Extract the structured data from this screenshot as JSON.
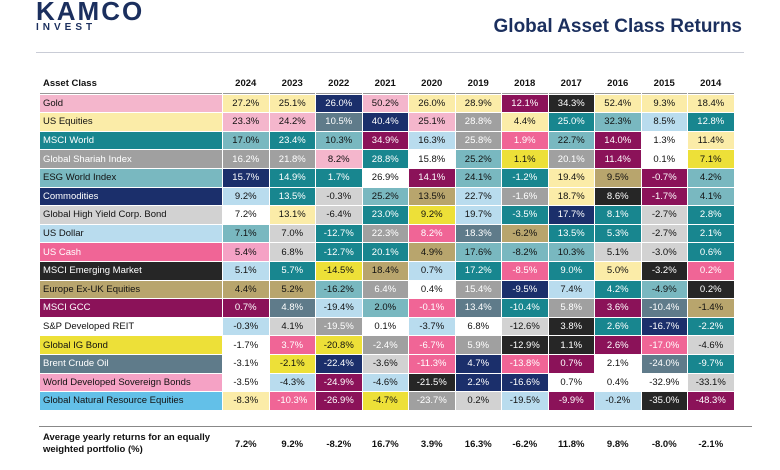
{
  "brand": {
    "name": "KAMCO",
    "sub": "INVEST"
  },
  "title": "Global Asset Class Returns",
  "footer_label": "Average yearly returns for an equally weighted portfolio (%)",
  "chart_data": {
    "type": "table",
    "title": "Global Asset Class Returns",
    "header_label": "Asset Class",
    "years": [
      "2024",
      "2023",
      "2022",
      "2021",
      "2020",
      "2019",
      "2018",
      "2017",
      "2016",
      "2015",
      "2014"
    ],
    "assets": [
      {
        "name": "Gold",
        "color": "#f4b6cc",
        "text": "#111111"
      },
      {
        "name": "US Equities",
        "color": "#fbeca8",
        "text": "#111111"
      },
      {
        "name": "MSCI World",
        "color": "#18868f",
        "text": "#ffffff"
      },
      {
        "name": "Global Shariah Index",
        "color": "#a0a0a0",
        "text": "#ffffff"
      },
      {
        "name": "ESG World Index",
        "color": "#79b8c0",
        "text": "#111111"
      },
      {
        "name": "Commodities",
        "color": "#1b2f6b",
        "text": "#ffffff"
      },
      {
        "name": "Global High Yield Corp. Bond",
        "color": "#d2d2d2",
        "text": "#111111"
      },
      {
        "name": "US Dollar",
        "color": "#b9dcee",
        "text": "#111111"
      },
      {
        "name": "US Cash",
        "color": "#f06596",
        "text": "#ffffff"
      },
      {
        "name": "MSCI Emerging Market",
        "color": "#262626",
        "text": "#ffffff"
      },
      {
        "name": "Europe Ex-UK Equities",
        "color": "#b8a56d",
        "text": "#111111"
      },
      {
        "name": "MSCI GCC",
        "color": "#8b1259",
        "text": "#ffffff"
      },
      {
        "name": "S&P Developed REIT",
        "color": "#ffffff",
        "text": "#111111"
      },
      {
        "name": "Global IG Bond",
        "color": "#ede038",
        "text": "#111111"
      },
      {
        "name": "Brent Crude Oil",
        "color": "#5f7b8a",
        "text": "#ffffff"
      },
      {
        "name": "World Developed Sovereign Bonds",
        "color": "#f5a2c5",
        "text": "#111111"
      },
      {
        "name": "Global Natural Resource Equities",
        "color": "#63c0e8",
        "text": "#111111"
      }
    ],
    "rows": [
      [
        "27.2%",
        "25.1%",
        "26.0%",
        "50.2%",
        "26.0%",
        "28.9%",
        "12.1%",
        "34.3%",
        "52.4%",
        "9.3%",
        "18.4%"
      ],
      [
        "23.3%",
        "24.2%",
        "10.5%",
        "40.4%",
        "25.1%",
        "28.8%",
        "4.4%",
        "25.0%",
        "32.3%",
        "8.5%",
        "12.8%"
      ],
      [
        "17.0%",
        "23.4%",
        "10.3%",
        "34.9%",
        "16.3%",
        "25.8%",
        "1.9%",
        "22.7%",
        "14.0%",
        "1.3%",
        "11.4%"
      ],
      [
        "16.2%",
        "21.8%",
        "8.2%",
        "28.8%",
        "15.8%",
        "25.2%",
        "1.1%",
        "20.1%",
        "11.4%",
        "0.1%",
        "7.1%"
      ],
      [
        "15.7%",
        "14.9%",
        "1.7%",
        "26.9%",
        "14.1%",
        "24.1%",
        "-1.2%",
        "19.4%",
        "9.5%",
        "-0.7%",
        "4.2%"
      ],
      [
        "9.2%",
        "13.5%",
        "-0.3%",
        "25.2%",
        "13.5%",
        "22.7%",
        "-1.6%",
        "18.7%",
        "8.6%",
        "-1.7%",
        "4.1%"
      ],
      [
        "7.2%",
        "13.1%",
        "-6.4%",
        "23.0%",
        "9.2%",
        "19.7%",
        "-3.5%",
        "17.7%",
        "8.1%",
        "-2.7%",
        "2.8%"
      ],
      [
        "7.1%",
        "7.0%",
        "-12.7%",
        "22.3%",
        "8.2%",
        "18.3%",
        "-6.2%",
        "13.5%",
        "5.3%",
        "-2.7%",
        "2.1%"
      ],
      [
        "5.4%",
        "6.8%",
        "-12.7%",
        "20.1%",
        "4.9%",
        "17.6%",
        "-8.2%",
        "10.3%",
        "5.1%",
        "-3.0%",
        "0.6%"
      ],
      [
        "5.1%",
        "5.7%",
        "-14.5%",
        "18.4%",
        "0.7%",
        "17.2%",
        "-8.5%",
        "9.0%",
        "5.0%",
        "-3.2%",
        "0.2%"
      ],
      [
        "4.4%",
        "5.2%",
        "-16.2%",
        "6.4%",
        "0.4%",
        "15.4%",
        "-9.5%",
        "7.4%",
        "4.2%",
        "-4.9%",
        "0.2%"
      ],
      [
        "0.7%",
        "4.8%",
        "-19.4%",
        "2.0%",
        "-0.1%",
        "13.4%",
        "-10.4%",
        "5.8%",
        "3.6%",
        "-10.4%",
        "-1.4%"
      ],
      [
        "-0.3%",
        "4.1%",
        "-19.5%",
        "0.1%",
        "-3.7%",
        "6.8%",
        "-12.6%",
        "3.8%",
        "2.6%",
        "-16.7%",
        "-2.2%"
      ],
      [
        "-1.7%",
        "3.7%",
        "-20.8%",
        "-2.4%",
        "-6.7%",
        "5.9%",
        "-12.9%",
        "1.1%",
        "2.6%",
        "-17.0%",
        "-4.6%"
      ],
      [
        "-3.1%",
        "-2.1%",
        "-22.4%",
        "-3.6%",
        "-11.3%",
        "4.7%",
        "-13.8%",
        "0.7%",
        "2.1%",
        "-24.0%",
        "-9.7%"
      ],
      [
        "-3.5%",
        "-4.3%",
        "-24.9%",
        "-4.6%",
        "-21.5%",
        "2.2%",
        "-16.6%",
        "0.7%",
        "0.4%",
        "-32.9%",
        "-33.1%"
      ],
      [
        "-8.3%",
        "-10.3%",
        "-26.9%",
        "-4.7%",
        "-23.7%",
        "0.2%",
        "-19.5%",
        "-9.9%",
        "-0.2%",
        "-35.0%",
        "-48.3%"
      ]
    ],
    "cell_assets": [
      [
        1,
        1,
        5,
        0,
        1,
        1,
        11,
        9,
        1,
        1,
        1
      ],
      [
        0,
        0,
        14,
        5,
        0,
        3,
        1,
        2,
        4,
        7,
        2
      ],
      [
        4,
        2,
        4,
        11,
        7,
        3,
        8,
        4,
        11,
        12,
        1
      ],
      [
        3,
        3,
        0,
        2,
        12,
        4,
        13,
        3,
        11,
        12,
        13
      ],
      [
        5,
        2,
        2,
        12,
        11,
        4,
        2,
        1,
        10,
        11,
        4
      ],
      [
        7,
        2,
        6,
        4,
        10,
        7,
        3,
        1,
        9,
        11,
        4
      ],
      [
        12,
        1,
        6,
        2,
        13,
        7,
        2,
        5,
        2,
        6,
        2
      ],
      [
        4,
        6,
        2,
        3,
        8,
        14,
        10,
        2,
        2,
        6,
        2
      ],
      [
        15,
        6,
        2,
        2,
        10,
        4,
        4,
        4,
        6,
        6,
        2
      ],
      [
        7,
        2,
        13,
        10,
        7,
        2,
        8,
        2,
        1,
        9,
        8
      ],
      [
        10,
        10,
        4,
        3,
        12,
        3,
        5,
        7,
        2,
        4,
        9
      ],
      [
        11,
        14,
        7,
        4,
        8,
        14,
        2,
        3,
        11,
        14,
        10
      ],
      [
        7,
        6,
        3,
        12,
        7,
        12,
        6,
        9,
        2,
        5,
        2
      ],
      [
        12,
        8,
        13,
        3,
        8,
        3,
        9,
        9,
        11,
        8,
        6
      ],
      [
        12,
        13,
        5,
        6,
        8,
        5,
        8,
        11,
        12,
        14,
        2
      ],
      [
        12,
        7,
        11,
        7,
        9,
        5,
        5,
        12,
        12,
        12,
        6
      ],
      [
        1,
        8,
        11,
        13,
        3,
        6,
        7,
        11,
        7,
        9,
        11
      ]
    ],
    "average_label": "Average yearly returns for an equally weighted portfolio (%)",
    "averages": [
      "7.2%",
      "9.2%",
      "-8.2%",
      "16.7%",
      "3.9%",
      "16.3%",
      "-6.2%",
      "11.8%",
      "9.8%",
      "-8.0%",
      "-2.1%"
    ]
  }
}
